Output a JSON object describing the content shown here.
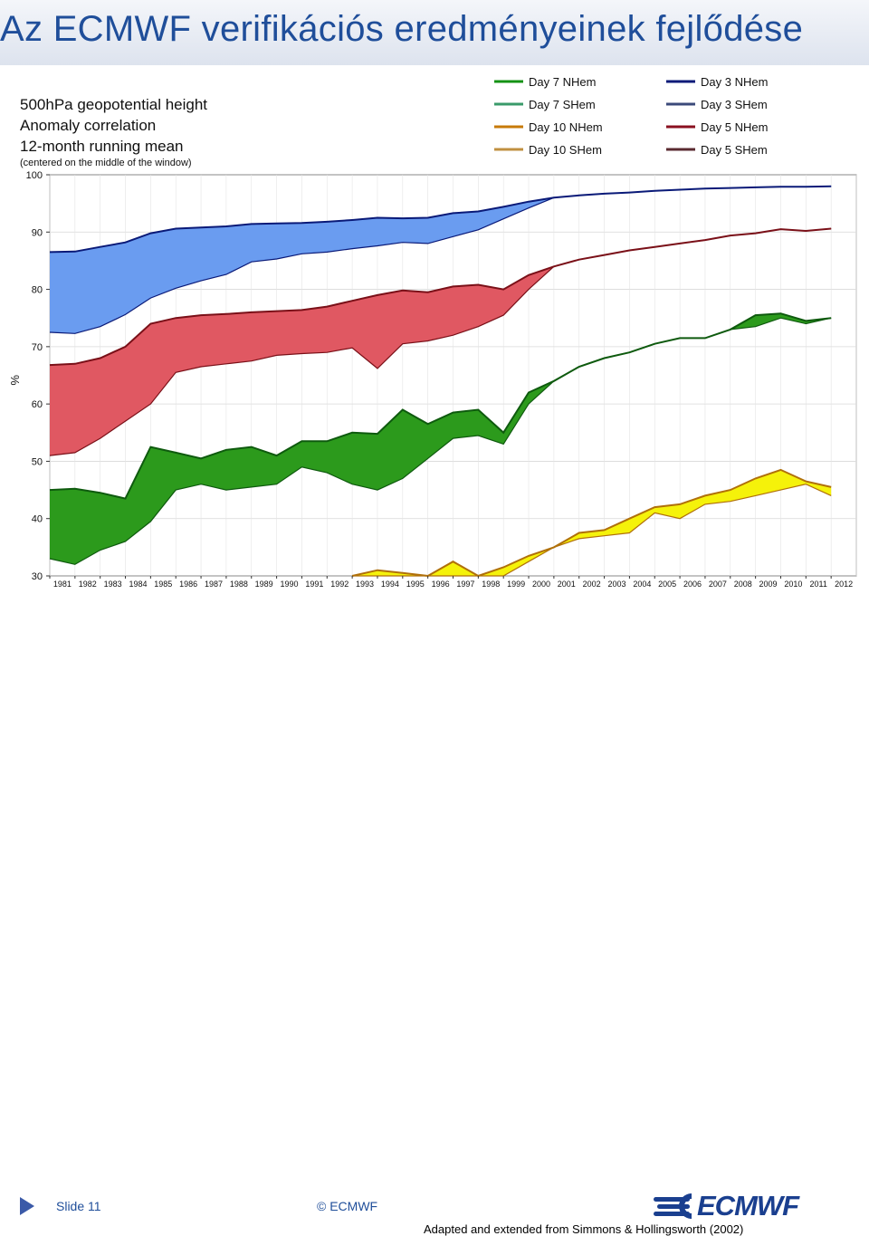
{
  "title": "Az ECMWF verifikációs eredményeinek fejlődése",
  "footer": {
    "slide": "Slide 11",
    "copyright": "© ECMWF",
    "source": "Adapted and extended from Simmons & Hollingsworth (2002)",
    "logo_text": "ECMWF"
  },
  "chart_data": {
    "type": "area",
    "title_lines": [
      "500hPa geopotential height",
      "Anomaly correlation",
      "12-month running mean",
      "(centered on the middle of the window)"
    ],
    "ylabel": "%",
    "ylim": [
      30,
      100
    ],
    "yticks": [
      "30",
      "40",
      "50",
      "60",
      "70",
      "80",
      "90",
      "100"
    ],
    "xlim": [
      1981,
      2013
    ],
    "categories": [
      "1981",
      "1982",
      "1983",
      "1984",
      "1985",
      "1986",
      "1987",
      "1988",
      "1989",
      "1990",
      "1991",
      "1992",
      "1993",
      "1994",
      "1995",
      "1996",
      "1997",
      "1998",
      "1999",
      "2000",
      "2001",
      "2002",
      "2003",
      "2004",
      "2005",
      "2006",
      "2007",
      "2008",
      "2009",
      "2010",
      "2011",
      "2012"
    ],
    "legend_position": "top-right",
    "legend": [
      {
        "name": "Day 7 NHem",
        "color": "#149214"
      },
      {
        "name": "Day 3 NHem",
        "color": "#0a1a78"
      },
      {
        "name": "Day 7 SHem",
        "color": "#3a9a6a"
      },
      {
        "name": "Day 3 SHem",
        "color": "#3b4a7a"
      },
      {
        "name": "Day 10 NHem",
        "color": "#c77a08"
      },
      {
        "name": "Day 5 NHem",
        "color": "#8a1020"
      },
      {
        "name": "Day 10 SHem",
        "color": "#c09040"
      },
      {
        "name": "Day 5 SHem",
        "color": "#5a2a30"
      }
    ],
    "bands": [
      {
        "name": "Day 3",
        "fill": "#6a9cf0",
        "edge": "#0a1a78",
        "x": [
          1981,
          1982,
          1983,
          1984,
          1985,
          1986,
          1987,
          1988,
          1989,
          1990,
          1991,
          1992,
          1993,
          1994,
          1995,
          1996,
          1997,
          1998,
          1999,
          2000,
          2001,
          2002,
          2003,
          2004,
          2005,
          2006,
          2007,
          2008,
          2009,
          2010,
          2011,
          2012
        ],
        "nh": [
          86.5,
          86.6,
          87.4,
          88.2,
          89.8,
          90.6,
          90.8,
          91.0,
          91.4,
          91.5,
          91.6,
          91.8,
          92.1,
          92.5,
          92.4,
          92.5,
          93.3,
          93.6,
          94.4,
          95.3,
          96.0,
          96.4,
          96.7,
          96.9,
          97.2,
          97.4,
          97.6,
          97.7,
          97.8,
          97.9,
          97.9,
          98.0
        ],
        "sh": [
          72.5,
          72.3,
          73.5,
          75.6,
          78.5,
          80.2,
          81.5,
          82.6,
          84.8,
          85.3,
          86.2,
          86.5,
          87.1,
          87.6,
          88.2,
          88.0,
          89.2,
          90.4,
          92.3,
          94.2,
          96.0,
          96.4,
          96.7,
          96.9,
          97.2,
          97.4,
          97.6,
          97.7,
          97.8,
          97.9,
          97.9,
          98.0
        ]
      },
      {
        "name": "Day 5",
        "fill": "#e05862",
        "edge": "#7a1018",
        "x": [
          1981,
          1982,
          1983,
          1984,
          1985,
          1986,
          1987,
          1988,
          1989,
          1990,
          1991,
          1992,
          1993,
          1994,
          1995,
          1996,
          1997,
          1998,
          1999,
          2000,
          2001,
          2002,
          2003,
          2004,
          2005,
          2006,
          2007,
          2008,
          2009,
          2010,
          2011,
          2012
        ],
        "nh": [
          66.8,
          67.0,
          68.0,
          70.0,
          74.0,
          75.0,
          75.5,
          75.7,
          76.0,
          76.2,
          76.4,
          77.0,
          78.0,
          79.0,
          79.8,
          79.5,
          80.5,
          80.8,
          80.0,
          82.5,
          84.0,
          85.2,
          86.0,
          86.8,
          87.4,
          88.0,
          88.6,
          89.4,
          89.8,
          90.5,
          90.2,
          90.6
        ],
        "sh": [
          51.0,
          51.5,
          54.0,
          57.0,
          60.0,
          65.5,
          66.5,
          67.0,
          67.5,
          68.5,
          68.8,
          69.0,
          69.8,
          66.2,
          70.5,
          71.0,
          72.0,
          73.5,
          75.5,
          80.0,
          84.0,
          85.2,
          86.0,
          86.8,
          87.4,
          88.0,
          88.6,
          89.4,
          89.8,
          90.5,
          90.2,
          90.6
        ]
      },
      {
        "name": "Day 7",
        "fill": "#2c9a1c",
        "edge": "#0e5a0e",
        "x": [
          1981,
          1982,
          1983,
          1984,
          1985,
          1986,
          1987,
          1988,
          1989,
          1990,
          1991,
          1992,
          1993,
          1994,
          1995,
          1996,
          1997,
          1998,
          1999,
          2000,
          2001,
          2002,
          2003,
          2004,
          2005,
          2006,
          2007,
          2008,
          2009,
          2010,
          2011,
          2012
        ],
        "nh": [
          45.0,
          45.2,
          44.5,
          43.5,
          52.5,
          51.5,
          50.5,
          52.0,
          52.5,
          51.0,
          53.5,
          53.5,
          55.0,
          54.8,
          59.0,
          56.5,
          58.5,
          59.0,
          55.0,
          62.0,
          64.0,
          66.5,
          68.0,
          69.0,
          70.5,
          71.5,
          71.5,
          73.0,
          75.5,
          75.8,
          74.5,
          75.0
        ],
        "sh": [
          33.0,
          32.0,
          34.5,
          36.0,
          39.5,
          45.0,
          46.0,
          45.0,
          45.5,
          46.0,
          49.0,
          48.0,
          46.0,
          45.0,
          47.0,
          50.5,
          54.0,
          54.5,
          53.0,
          60.0,
          64.0,
          66.5,
          68.0,
          69.0,
          70.5,
          71.5,
          71.5,
          73.0,
          73.5,
          75.0,
          74.0,
          75.0
        ]
      },
      {
        "name": "Day 10",
        "fill": "#f5f20a",
        "edge": "#b0700a",
        "x": [
          1993,
          1994,
          1995,
          1996,
          1997,
          1998,
          1999,
          2000,
          2001,
          2002,
          2003,
          2004,
          2005,
          2006,
          2007,
          2008,
          2009,
          2010,
          2011,
          2012
        ],
        "nh": [
          30.0,
          31.0,
          30.5,
          30.0,
          32.5,
          30.0,
          31.5,
          33.5,
          35.0,
          37.5,
          38.0,
          40.0,
          42.0,
          42.5,
          44.0,
          45.0,
          47.0,
          48.5,
          46.5,
          45.5
        ],
        "sh": [
          30.0,
          30.0,
          30.0,
          30.0,
          30.0,
          30.0,
          30.0,
          32.5,
          35.0,
          36.5,
          37.0,
          37.5,
          41.0,
          40.0,
          42.5,
          43.0,
          44.0,
          45.0,
          46.0,
          44.0
        ]
      }
    ]
  }
}
